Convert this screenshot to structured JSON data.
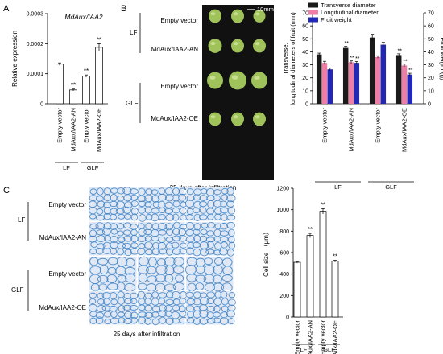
{
  "panels": {
    "A": {
      "letter": "A"
    },
    "B": {
      "letter": "B",
      "caption": "25 days after infiltration",
      "scale_bar": "10mm",
      "rows": [
        "Empty vector",
        "MdAux/IAA2-AN",
        "Empty vector",
        "MdAux/IAA2-OE"
      ],
      "groups": [
        "LF",
        "GLF"
      ]
    },
    "C": {
      "letter": "C",
      "caption": "25 days after infiltration",
      "rows": [
        "Empty vector",
        "MdAux/IAA2-AN",
        "Empty vector",
        "MdAux/IAA2-OE"
      ],
      "groups": [
        "LF",
        "GLF"
      ]
    }
  },
  "colors": {
    "white_bar": "#ffffff",
    "transverse": "#1a1a1a",
    "longitudinal": "#ee7ea6",
    "weight": "#2327b5",
    "fruit_bg": "#111111",
    "fruit": "#9fc25a",
    "stain_bg": "#dfe8f4",
    "stain_cell": "#3a7fc4"
  },
  "chart_data": [
    {
      "id": "A",
      "type": "bar",
      "title": "MdAux/IAA2",
      "ylabel": "Relative expression",
      "ylim": [
        0,
        0.0003
      ],
      "yticks": [
        "0",
        "0.0001",
        "0.0002",
        "0.0003"
      ],
      "categories": [
        "Empty vector",
        "MdAux/IAA2-AN",
        "Empty vector",
        "MdAux/IAA2-OE"
      ],
      "groups": [
        {
          "label": "LF",
          "span": [
            0,
            1
          ]
        },
        {
          "label": "GLF",
          "span": [
            2,
            3
          ]
        }
      ],
      "values": [
        0.000132,
        4.6e-05,
        9.2e-05,
        0.000188
      ],
      "errors": [
        4e-06,
        3e-06,
        4e-06,
        1.2e-05
      ],
      "significance": [
        "",
        "**",
        "**",
        "**"
      ]
    },
    {
      "id": "B",
      "type": "bar",
      "ylabel": "Transverse, longitudinal diameters of fruit (mm)",
      "y2label": "Fruit weight (g)",
      "ylim": [
        0,
        70
      ],
      "yticks": [
        "0",
        "10",
        "20",
        "30",
        "40",
        "50",
        "60",
        "70"
      ],
      "y2lim": [
        0,
        70
      ],
      "y2ticks": [
        "0",
        "10",
        "20",
        "30",
        "40",
        "50",
        "60",
        "70"
      ],
      "legend": [
        "Transverse diameter",
        "Longitudinal diameter",
        "Fruit weight"
      ],
      "legend_position": "top",
      "categories": [
        "Empty vector",
        "MdAux/IAA2-AN",
        "Empty vector",
        "MdAux/IAA2-OE"
      ],
      "groups": [
        {
          "label": "LF",
          "span": [
            0,
            1
          ]
        },
        {
          "label": "GLF",
          "span": [
            2,
            3
          ]
        }
      ],
      "series": [
        {
          "name": "Transverse diameter",
          "values": [
            38,
            43,
            51,
            37.5
          ],
          "errors": [
            1,
            1.2,
            2.5,
            1
          ],
          "significance": [
            "",
            "**",
            "",
            "**"
          ]
        },
        {
          "name": "Longitudinal diameter",
          "values": [
            31.5,
            32,
            36,
            29.5
          ],
          "errors": [
            1.2,
            1,
            1,
            1
          ],
          "significance": [
            "",
            "**",
            "",
            "**"
          ]
        },
        {
          "name": "Fruit weight",
          "values": [
            26.5,
            31.5,
            45.5,
            22.5
          ],
          "errors": [
            1,
            1,
            2,
            1
          ],
          "significance": [
            "",
            "**",
            "",
            "**"
          ]
        }
      ]
    },
    {
      "id": "C",
      "type": "bar",
      "ylabel": "Cell size （μm）",
      "ylim": [
        0,
        1200
      ],
      "yticks": [
        "0",
        "200",
        "400",
        "600",
        "800",
        "1000",
        "1200"
      ],
      "categories": [
        "Empty vector",
        "MdAux/IAA2-AN",
        "Empty vector",
        "MdAux/IAA2-OE"
      ],
      "groups": [
        {
          "label": "LF",
          "span": [
            0,
            1
          ]
        },
        {
          "label": "GLF",
          "span": [
            2,
            3
          ]
        }
      ],
      "values": [
        510,
        760,
        985,
        520
      ],
      "errors": [
        8,
        20,
        25,
        10
      ],
      "significance": [
        "",
        "**",
        "**",
        "**"
      ]
    }
  ]
}
